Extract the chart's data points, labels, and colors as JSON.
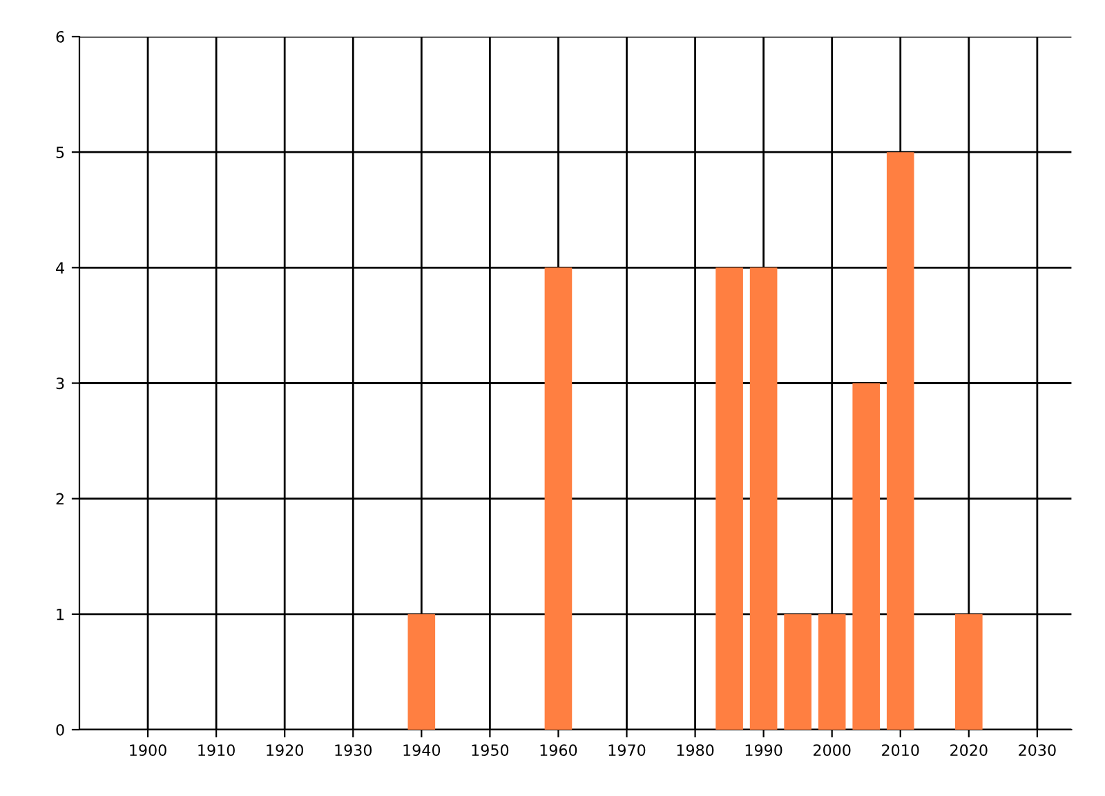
{
  "chart_data": {
    "type": "bar",
    "x": [
      1940,
      1960,
      1985,
      1990,
      1995,
      2000,
      2005,
      2010,
      2020
    ],
    "values": [
      1,
      4,
      4,
      4,
      1,
      1,
      3,
      5,
      1
    ],
    "color": "#ff7f41",
    "xlim": [
      1890,
      2035
    ],
    "xticks": [
      1900,
      1910,
      1920,
      1930,
      1940,
      1950,
      1960,
      1970,
      1980,
      1990,
      2000,
      2010,
      2020,
      2030
    ],
    "ylim": [
      0,
      6
    ],
    "yticks": [
      0,
      1,
      2,
      3,
      4,
      5,
      6
    ],
    "grid": true
  }
}
